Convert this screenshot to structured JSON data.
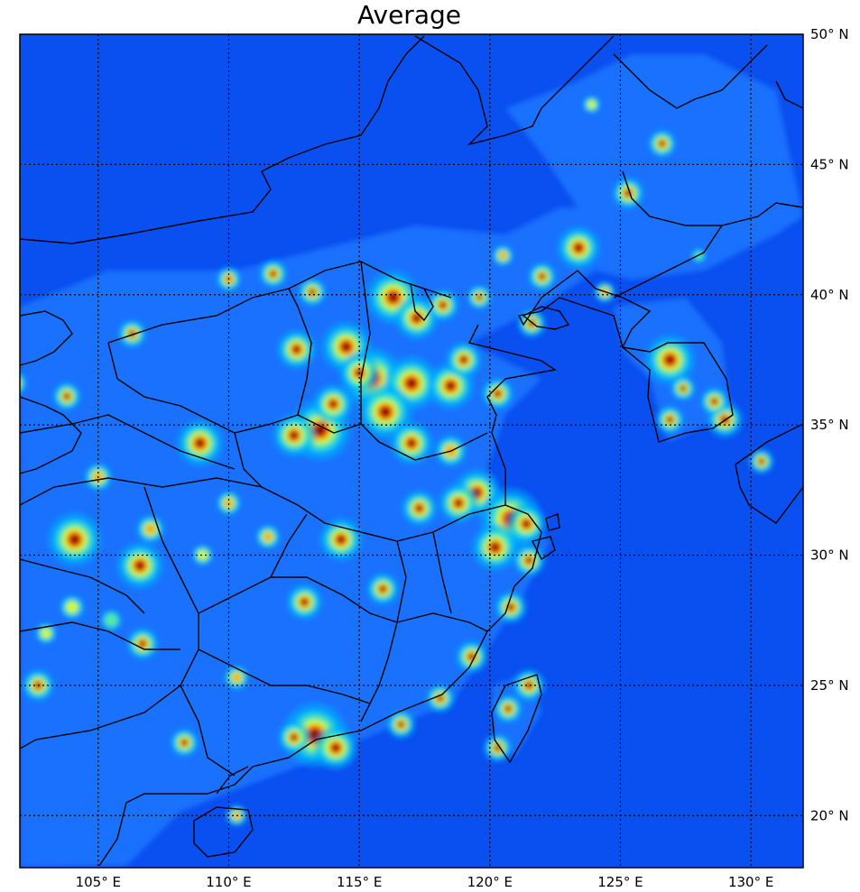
{
  "title": "Average",
  "map": {
    "lon_range": [
      102,
      132
    ],
    "lat_range": [
      18,
      50
    ],
    "colormap": [
      "#0000c8",
      "#0048ff",
      "#00a8ff",
      "#00e0e8",
      "#80ff80",
      "#ffff00",
      "#ff8800",
      "#e01000",
      "#7a0000"
    ],
    "background_color": "#0a4ff0",
    "grid": "dotted",
    "lon_ticks": [
      {
        "value": 105,
        "label": "105° E"
      },
      {
        "value": 110,
        "label": "110° E"
      },
      {
        "value": 115,
        "label": "115° E"
      },
      {
        "value": 120,
        "label": "120° E"
      },
      {
        "value": 125,
        "label": "125° E"
      },
      {
        "value": 130,
        "label": "130° E"
      }
    ],
    "lat_ticks": [
      {
        "value": 50,
        "label": "50° N"
      },
      {
        "value": 45,
        "label": "45° N"
      },
      {
        "value": 40,
        "label": "40° N"
      },
      {
        "value": 35,
        "label": "35° N"
      },
      {
        "value": 30,
        "label": "30° N"
      },
      {
        "value": 25,
        "label": "25° N"
      },
      {
        "value": 20,
        "label": "20° N"
      }
    ]
  }
}
